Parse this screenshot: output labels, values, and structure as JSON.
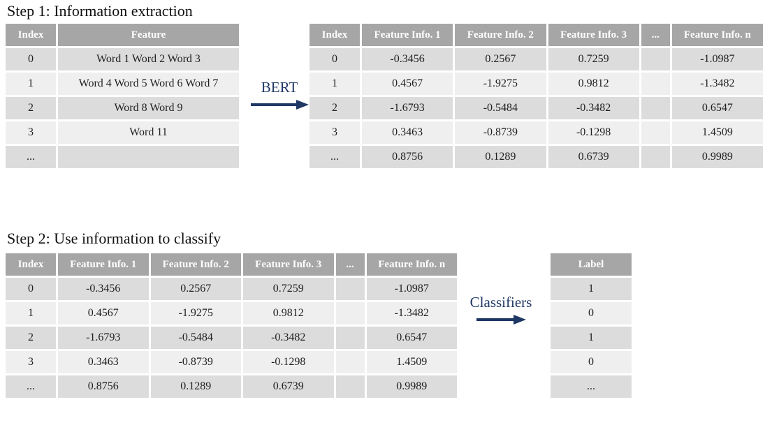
{
  "colors": {
    "header_bg": "#a6a6a6",
    "row_dark": "#dcdcdc",
    "row_light": "#efefef",
    "header_text": "#ffffff",
    "body_text": "#1f1f1f",
    "accent_navy": "#1f3864"
  },
  "step1": {
    "title": "Step 1: Information extraction",
    "arrow_label": "BERT",
    "input_table": {
      "headers": [
        "Index",
        "Feature"
      ],
      "rows": [
        [
          "0",
          "Word 1 Word 2 Word 3"
        ],
        [
          "1",
          "Word 4 Word 5 Word 6 Word 7"
        ],
        [
          "2",
          "Word 8 Word 9"
        ],
        [
          "3",
          "Word 11"
        ],
        [
          "...",
          ""
        ]
      ]
    },
    "output_table": {
      "headers": [
        "Index",
        "Feature Info. 1",
        "Feature Info. 2",
        "Feature Info. 3",
        "...",
        "Feature Info. n"
      ],
      "rows": [
        [
          "0",
          "-0.3456",
          "0.2567",
          "0.7259",
          "",
          "-1.0987"
        ],
        [
          "1",
          "0.4567",
          "-1.9275",
          "0.9812",
          "",
          "-1.3482"
        ],
        [
          "2",
          "-1.6793",
          "-0.5484",
          "-0.3482",
          "",
          "0.6547"
        ],
        [
          "3",
          "0.3463",
          "-0.8739",
          "-0.1298",
          "",
          "1.4509"
        ],
        [
          "...",
          "0.8756",
          "0.1289",
          "0.6739",
          "",
          "0.9989"
        ]
      ]
    }
  },
  "step2": {
    "title": "Step 2: Use information to classify",
    "arrow_label": "Classifiers",
    "feature_table": {
      "headers": [
        "Index",
        "Feature Info. 1",
        "Feature Info. 2",
        "Feature Info. 3",
        "...",
        "Feature Info. n"
      ],
      "rows": [
        [
          "0",
          "-0.3456",
          "0.2567",
          "0.7259",
          "",
          "-1.0987"
        ],
        [
          "1",
          "0.4567",
          "-1.9275",
          "0.9812",
          "",
          "-1.3482"
        ],
        [
          "2",
          "-1.6793",
          "-0.5484",
          "-0.3482",
          "",
          "0.6547"
        ],
        [
          "3",
          "0.3463",
          "-0.8739",
          "-0.1298",
          "",
          "1.4509"
        ],
        [
          "...",
          "0.8756",
          "0.1289",
          "0.6739",
          "",
          "0.9989"
        ]
      ]
    },
    "label_table": {
      "headers": [
        "Label"
      ],
      "rows": [
        [
          "1"
        ],
        [
          "0"
        ],
        [
          "1"
        ],
        [
          "0"
        ],
        [
          "..."
        ]
      ]
    }
  }
}
